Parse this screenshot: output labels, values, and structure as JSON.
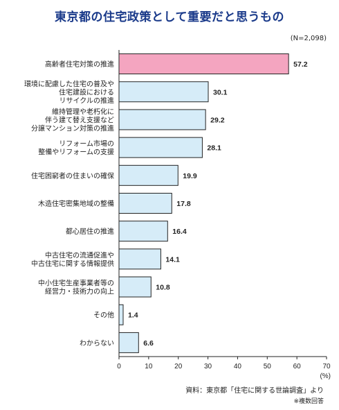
{
  "header": {
    "title": "東京都の住宅政策として重要だと思うもの",
    "sample": "(N=2,098)"
  },
  "footer": {
    "source": "資料：東京都「住宅に関する世論調査」より",
    "note": "※複数回答"
  },
  "colors": {
    "highlight_fill": "#f4a5c0",
    "bar_fill": "#d6ecf8",
    "bar_stroke": "#222222",
    "title": "#1a3a8a"
  },
  "chart_data": {
    "type": "bar",
    "orientation": "horizontal",
    "title": "東京都の住宅政策として重要だと思うもの",
    "xlabel": "(%)",
    "ylabel": "",
    "xlim": [
      0,
      70
    ],
    "xticks": [
      0,
      10,
      20,
      30,
      40,
      50,
      60,
      70
    ],
    "grid": false,
    "categories": [
      "高齢者住宅対策の推進",
      "環境に配慮した住宅の普及や住宅建設における リサイクルの推進",
      "維持管理や老朽化に伴う建て替え支援など分譲マンション対策の推進",
      "リフォーム市場の整備やリフォームの支援",
      "住宅困窮者の住まいの確保",
      "木造住宅密集地域の整備",
      "都心居住の推進",
      "中古住宅の流通促進や中古住宅に関する情報提供",
      "中小住宅生産事業者等の経営力・技術力の向上",
      "その他",
      "わからない"
    ],
    "category_lines": [
      [
        "高齢者住宅対策の推進"
      ],
      [
        "環境に配慮した住宅の普及や",
        "住宅建設における",
        "リサイクルの推進"
      ],
      [
        "維持管理や老朽化に",
        "伴う建て替え支援など",
        "分譲マンション対策の推進"
      ],
      [
        "リフォーム市場の",
        "整備やリフォームの支援"
      ],
      [
        "住宅困窮者の住まいの確保"
      ],
      [
        "木造住宅密集地域の整備"
      ],
      [
        "都心居住の推進"
      ],
      [
        "中古住宅の流通促進や",
        "中古住宅に関する情報提供"
      ],
      [
        "中小住宅生産事業者等の",
        "経営力・技術力の向上"
      ],
      [
        "その他"
      ],
      [
        "わからない"
      ]
    ],
    "values": [
      57.2,
      30.1,
      29.2,
      28.1,
      19.9,
      17.8,
      16.4,
      14.1,
      10.8,
      1.4,
      6.6
    ],
    "value_labels": [
      "57.2",
      "30.1",
      "29.2",
      "28.1",
      "19.9",
      "17.8",
      "16.4",
      "14.1",
      "10.8",
      "1.4",
      "6.6"
    ],
    "highlight_index": 0
  }
}
